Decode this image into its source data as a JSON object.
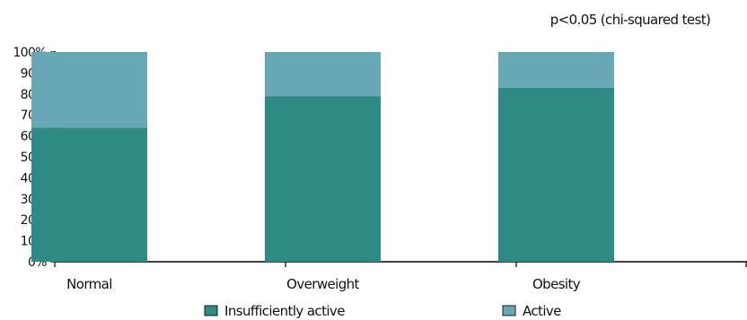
{
  "chart_data": {
    "type": "bar",
    "stacked": true,
    "categories": [
      "Normal",
      "Overweight",
      "Obesity"
    ],
    "series": [
      {
        "name": "Insufficiently active",
        "values": [
          64,
          79,
          83
        ],
        "color": "#2e8b84"
      },
      {
        "name": "Active",
        "values": [
          36,
          21,
          17
        ],
        "color": "#68a8b6"
      }
    ],
    "ylim": [
      0,
      100
    ],
    "yticks": [
      0,
      10,
      20,
      30,
      40,
      50,
      60,
      70,
      80,
      90,
      100
    ],
    "ytick_labels": [
      "0%",
      "10%",
      "20%",
      "30%",
      "40%",
      "50%",
      "60%",
      "70%",
      "80%",
      "90%",
      "100%"
    ],
    "annotation": "p<0.05 (chi-squared test)",
    "legend_position": "bottom",
    "grid": false
  }
}
